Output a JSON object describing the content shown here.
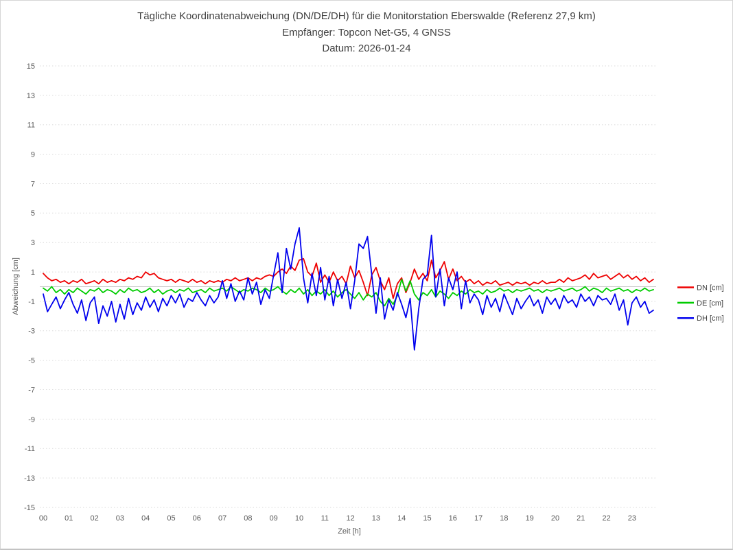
{
  "window": {
    "background": "#ffffff",
    "border_color": "#d5d5d5"
  },
  "chart_data": {
    "type": "line",
    "title": "Tägliche Koordinatenabweichung (DN/DE/DH) für die Monitorstation Eberswalde (Referenz 27,9 km)",
    "subtitle": "Empfänger: Topcon Net-G5, 4 GNSS",
    "date_label": "Datum: 2026-01-24",
    "xlabel": "Zeit [h]",
    "ylabel": "Abweichung [cm]",
    "ylim": [
      -15,
      15
    ],
    "xlim_hours": [
      0,
      24
    ],
    "y_ticks": [
      15,
      13,
      11,
      9,
      7,
      5,
      3,
      1,
      -1,
      -3,
      -5,
      -7,
      -9,
      -11,
      -13,
      -15
    ],
    "x_tick_labels": [
      "00",
      "01",
      "02",
      "03",
      "04",
      "05",
      "06",
      "07",
      "08",
      "09",
      "10",
      "11",
      "12",
      "13",
      "14",
      "15",
      "16",
      "17",
      "18",
      "19",
      "20",
      "21",
      "22",
      "23"
    ],
    "grid": "horizontal dotted gridlines at odd values, solid light line at 0, no vertical gridlines",
    "gridline_color": "#d9d9d9",
    "zero_line_color": "#c8c8c8",
    "legend_position": "right-middle",
    "sample_interval_minutes": 10,
    "series": [
      {
        "name": "DN [cm]",
        "color": "#ee0000",
        "values": [
          0.9,
          0.6,
          0.4,
          0.5,
          0.3,
          0.4,
          0.2,
          0.4,
          0.3,
          0.5,
          0.2,
          0.3,
          0.4,
          0.2,
          0.5,
          0.3,
          0.4,
          0.3,
          0.5,
          0.4,
          0.6,
          0.5,
          0.7,
          0.6,
          1.0,
          0.8,
          0.9,
          0.6,
          0.5,
          0.4,
          0.5,
          0.3,
          0.5,
          0.4,
          0.3,
          0.5,
          0.3,
          0.4,
          0.2,
          0.4,
          0.3,
          0.4,
          0.3,
          0.5,
          0.4,
          0.6,
          0.4,
          0.5,
          0.6,
          0.4,
          0.6,
          0.5,
          0.7,
          0.8,
          0.7,
          1.0,
          1.2,
          0.9,
          1.4,
          1.1,
          1.8,
          1.9,
          1.0,
          0.7,
          1.6,
          0.3,
          0.8,
          0.3,
          1.0,
          0.4,
          0.7,
          0.2,
          1.4,
          0.6,
          1.1,
          0.3,
          -0.6,
          0.8,
          1.3,
          0.4,
          -0.2,
          0.6,
          -0.8,
          0.2,
          0.6,
          -0.4,
          0.3,
          1.2,
          0.5,
          0.9,
          0.4,
          1.8,
          0.6,
          1.1,
          1.7,
          0.5,
          1.2,
          0.4,
          0.7,
          0.3,
          0.5,
          0.2,
          0.4,
          0.1,
          0.3,
          0.2,
          0.4,
          0.1,
          0.2,
          0.3,
          0.1,
          0.3,
          0.2,
          0.3,
          0.1,
          0.3,
          0.2,
          0.4,
          0.2,
          0.3,
          0.3,
          0.5,
          0.3,
          0.6,
          0.4,
          0.5,
          0.6,
          0.8,
          0.5,
          0.9,
          0.6,
          0.7,
          0.8,
          0.5,
          0.7,
          0.9,
          0.6,
          0.8,
          0.5,
          0.7,
          0.4,
          0.6,
          0.3,
          0.5
        ]
      },
      {
        "name": "DE [cm]",
        "color": "#00cc00",
        "values": [
          -0.1,
          -0.3,
          0.0,
          -0.4,
          -0.2,
          -0.5,
          -0.2,
          -0.4,
          -0.1,
          -0.3,
          -0.5,
          -0.2,
          -0.3,
          -0.1,
          -0.4,
          -0.2,
          -0.3,
          -0.5,
          -0.2,
          -0.4,
          -0.1,
          -0.3,
          -0.2,
          -0.4,
          -0.3,
          -0.1,
          -0.4,
          -0.2,
          -0.5,
          -0.3,
          -0.2,
          -0.4,
          -0.2,
          -0.3,
          -0.1,
          -0.4,
          -0.3,
          -0.2,
          -0.4,
          -0.1,
          -0.3,
          -0.2,
          -0.1,
          -0.3,
          0.0,
          -0.2,
          -0.4,
          -0.2,
          -0.3,
          -0.1,
          -0.2,
          -0.4,
          -0.1,
          -0.3,
          -0.2,
          0.0,
          -0.3,
          -0.5,
          -0.2,
          -0.4,
          -0.1,
          -0.5,
          -0.2,
          -0.6,
          -0.3,
          -0.5,
          -0.2,
          -0.6,
          -0.3,
          -0.7,
          -0.4,
          -0.2,
          -0.5,
          -0.8,
          -0.4,
          -0.9,
          -0.5,
          -0.7,
          -0.4,
          -1.0,
          -1.3,
          -0.8,
          -1.2,
          -0.6,
          0.5,
          -0.3,
          0.4,
          -0.5,
          -0.9,
          -0.4,
          -0.6,
          -0.2,
          -0.7,
          -0.3,
          -0.5,
          -0.8,
          -0.4,
          -0.6,
          -0.3,
          -0.5,
          -0.2,
          -0.4,
          -0.3,
          -0.5,
          -0.2,
          -0.4,
          -0.3,
          -0.1,
          -0.3,
          -0.2,
          -0.4,
          -0.2,
          -0.3,
          -0.2,
          -0.1,
          -0.3,
          -0.2,
          -0.4,
          -0.2,
          -0.3,
          -0.2,
          -0.1,
          -0.3,
          -0.2,
          -0.1,
          -0.3,
          -0.2,
          0.0,
          -0.3,
          -0.1,
          -0.2,
          -0.4,
          -0.1,
          -0.3,
          -0.2,
          -0.1,
          -0.3,
          -0.2,
          -0.4,
          -0.2,
          -0.3,
          -0.1,
          -0.3,
          -0.2
        ]
      },
      {
        "name": "DH [cm]",
        "color": "#0000ee",
        "values": [
          -0.5,
          -1.7,
          -1.2,
          -0.7,
          -1.5,
          -0.9,
          -0.4,
          -1.2,
          -1.8,
          -0.9,
          -2.3,
          -1.1,
          -0.7,
          -2.5,
          -1.3,
          -2.0,
          -1.0,
          -2.4,
          -1.2,
          -2.2,
          -0.8,
          -1.9,
          -1.1,
          -1.6,
          -0.7,
          -1.4,
          -0.9,
          -1.7,
          -0.8,
          -1.3,
          -0.6,
          -1.1,
          -0.5,
          -1.4,
          -0.8,
          -1.0,
          -0.4,
          -0.9,
          -1.3,
          -0.6,
          -1.1,
          -0.7,
          0.4,
          -0.8,
          0.2,
          -1.0,
          -0.3,
          -0.9,
          0.6,
          -0.5,
          0.3,
          -1.2,
          -0.2,
          -0.8,
          0.8,
          2.3,
          -0.4,
          2.6,
          1.2,
          2.9,
          4.0,
          0.6,
          -1.1,
          0.9,
          -0.6,
          1.3,
          -0.9,
          0.7,
          -1.3,
          0.5,
          -0.8,
          0.3,
          -1.5,
          0.4,
          2.9,
          2.6,
          3.4,
          0.8,
          -1.8,
          0.6,
          -2.2,
          -0.9,
          -1.6,
          -0.4,
          -1.2,
          -2.1,
          -0.8,
          -4.3,
          -1.5,
          0.5,
          0.8,
          3.5,
          -0.7,
          1.2,
          -1.3,
          0.6,
          -0.2,
          1.0,
          -1.5,
          0.4,
          -1.1,
          -0.5,
          -0.9,
          -1.9,
          -0.6,
          -1.4,
          -0.8,
          -1.7,
          -0.5,
          -1.2,
          -1.9,
          -0.8,
          -1.5,
          -1.0,
          -0.6,
          -1.3,
          -0.9,
          -1.8,
          -0.7,
          -1.2,
          -0.8,
          -1.5,
          -0.6,
          -1.1,
          -0.9,
          -1.4,
          -0.5,
          -1.0,
          -0.7,
          -1.3,
          -0.6,
          -0.9,
          -0.8,
          -1.2,
          -0.5,
          -1.6,
          -0.9,
          -2.6,
          -1.1,
          -0.7,
          -1.4,
          -1.0,
          -1.8,
          -1.6
        ]
      }
    ]
  }
}
